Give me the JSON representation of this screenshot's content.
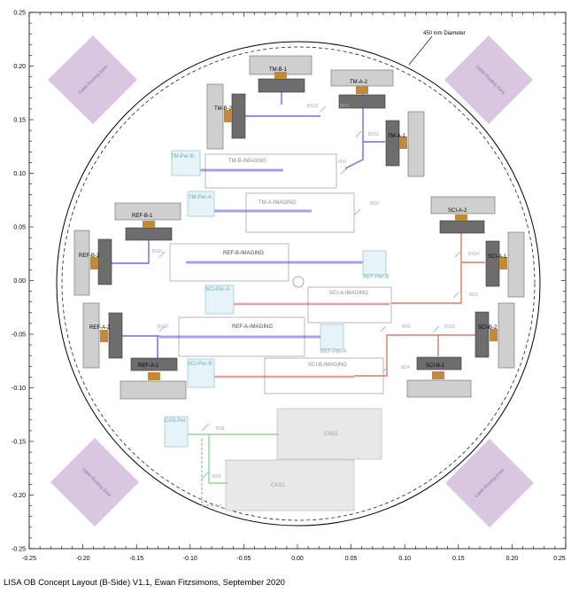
{
  "caption": "LISA OB Concept Layout (B-Side) V1.1, Ewan Fitzsimons, September 2020",
  "diameter_label": "450 mm Diameter",
  "cable_zone_label": "Cable Routing Zone",
  "axes": {
    "x_ticks": [
      "-0.25",
      "-0.20",
      "-0.15",
      "-0.10",
      "-0.05",
      "0.00",
      "0.05",
      "0.10",
      "0.15",
      "0.20",
      "0.25"
    ],
    "y_ticks": [
      "0.25",
      "0.20",
      "0.15",
      "0.10",
      "0.05",
      "0.00",
      "-0.05",
      "-0.10",
      "-0.15",
      "-0.20",
      "-0.25"
    ]
  },
  "assemblies": {
    "tm_b_1": "TM-B-1",
    "tm_a_2": "TM-A-2",
    "tm_b_2": "TM-B-2",
    "tm_a_1": "TM-A-1",
    "ref_b_1": "REF-B-1",
    "ref_b_2": "REF-B-2",
    "ref_a_2": "REF-A-2",
    "ref_a_1": "REF-A-1",
    "sci_a_2": "SCI-A-2",
    "sci_a_1": "SCI-A-1",
    "sci_b_2": "SCI-B-2",
    "sci_b_1": "SCI-B-1"
  },
  "imaging": {
    "tm_b": "TM-B-IMAGING",
    "tm_a": "TM-A-IMAGING",
    "ref_b": "REF-B-IMAGING",
    "ref_a": "REF-A-IMAGING",
    "sci_a": "SCI-A-IMAGING",
    "sci_b": "SCI-B-IMAGING"
  },
  "detectors": {
    "tm_per_b": "TM-Per-B",
    "tm_per_a": "TM-Per-A",
    "ref_per_b": "REF-Per-B",
    "ref_per_a": "REF-Per-A",
    "sci_per_a": "SCI-Per-A",
    "sci_per_b": "SCI-Per-B",
    "cas_per": "CAS-Per"
  },
  "optics": {
    "bs33": "BS33",
    "m35": "M35",
    "bs32": "BS32",
    "m31": "M31",
    "m30": "M30",
    "bs31": "BS31",
    "bs34": "BS34",
    "m33": "M33",
    "bs30": "BS30",
    "m36": "M36",
    "bs35": "BS35",
    "m34": "M34",
    "bs8": "BS8",
    "bs9": "BS9"
  },
  "cas": {
    "cas2": "CAS2",
    "cas1": "CAS1"
  },
  "colors": {
    "cable_zone": "#d9c7e2",
    "blue_beam": "#6a6ee0",
    "red_beam": "#d97a6a",
    "green_beam": "#9ccf9c",
    "dark_block": "#6d6d6d",
    "light_block": "#cfcfcf",
    "detector": "#8fc3cf"
  }
}
